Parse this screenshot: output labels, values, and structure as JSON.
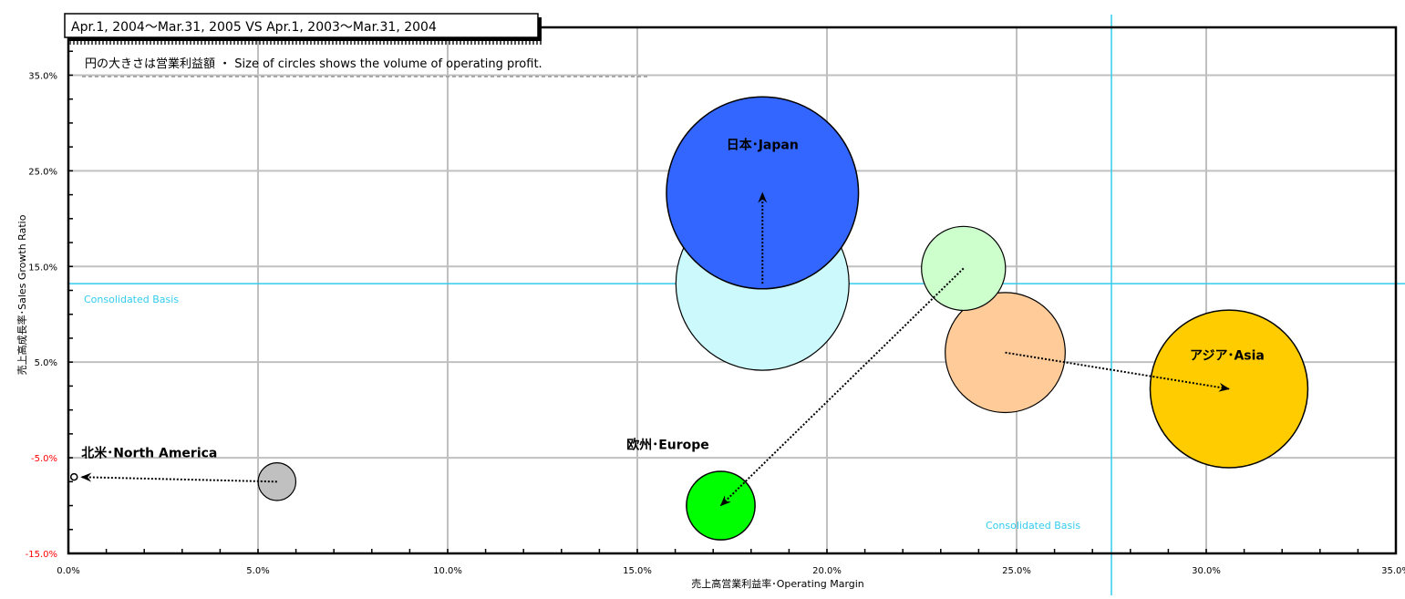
{
  "chart_data": {
    "type": "bubble",
    "title": "Apr.1, 2004～Mar.31, 2005 VS Apr.1, 2003～Mar.31, 2004",
    "subtitle": "円の大きさは営業利益額 ・ Size of circles shows the volume of operating profit.",
    "xlabel": "売上高営業利益率･Operating Margin",
    "ylabel": "売上高成長率･Sales Growth Ratio",
    "xlim": [
      0,
      35
    ],
    "ylim": [
      -15,
      40
    ],
    "x_ticks": [
      "0.0%",
      "5.0%",
      "10.0%",
      "15.0%",
      "20.0%",
      "25.0%",
      "30.0%",
      "35.0%"
    ],
    "y_ticks": [
      {
        "value": 35,
        "label": "35.0%"
      },
      {
        "value": 25,
        "label": "25.0%"
      },
      {
        "value": 15,
        "label": "15.0%"
      },
      {
        "value": 5,
        "label": "5.0%"
      },
      {
        "value": -5,
        "label": "-5.0%"
      },
      {
        "value": -15,
        "label": "-15.0%"
      }
    ],
    "grid": true,
    "reference_lines": {
      "label": "Consolidated  Basis",
      "horizontal_y": 13.2,
      "vertical_x": 27.5,
      "color": "#33ccee"
    },
    "series": [
      {
        "name": "日本･Japan",
        "prev": {
          "x": 18.3,
          "y": 13.2,
          "size": 10.1,
          "color": "#ccf9fc"
        },
        "curr": {
          "x": 18.3,
          "y": 22.7,
          "size": 11.2,
          "color": "#3366ff"
        },
        "label_color": "#000000"
      },
      {
        "name": "",
        "prev": {
          "x": 24.7,
          "y": 6.0,
          "size": 7.0,
          "color": "#ffcc99"
        },
        "curr": null,
        "label_color": "#000000"
      },
      {
        "name": "アジア･Asia",
        "prev": {
          "x": 24.7,
          "y": 6.0,
          "size": 7.0,
          "color": "#ffcc99"
        },
        "curr": {
          "x": 30.6,
          "y": 2.2,
          "size": 9.2,
          "color": "#ffcc00"
        },
        "label_color": "#000000"
      },
      {
        "name": "欧州･Europe",
        "prev": {
          "x": 23.6,
          "y": 14.8,
          "size": 4.9,
          "color": "#ccffcc"
        },
        "curr": {
          "x": 17.2,
          "y": -10.0,
          "size": 4.0,
          "color": "#00ff00"
        },
        "label_color": "#000000"
      },
      {
        "name": "北米･North America",
        "prev": {
          "x": 5.5,
          "y": -7.5,
          "size": 2.2,
          "color": "#c0c0c0"
        },
        "curr": {
          "x": 0.15,
          "y": -7.0,
          "size": 0.35,
          "color": "#ffffff"
        },
        "label_color": "#000000"
      }
    ]
  }
}
